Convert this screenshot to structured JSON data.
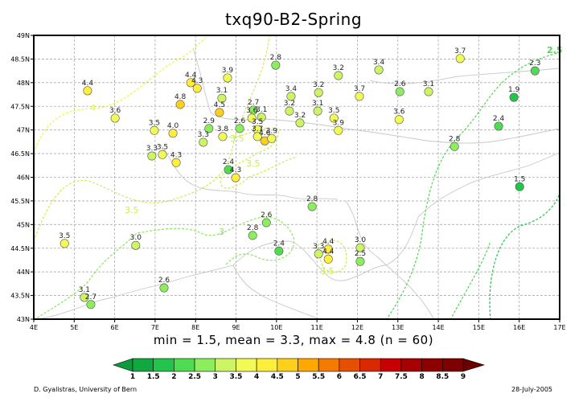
{
  "title": "txq90-B2-Spring",
  "stats": "min = 1.5, mean = 3.3, max = 4.8 (n = 60)",
  "footer": {
    "author": "D. Gyalistras, University of Bern",
    "date": "28-July-2005"
  },
  "axes": {
    "lon_range": [
      4,
      17
    ],
    "lat_range": [
      43,
      49
    ],
    "x_ticks": [
      "4E",
      "5E",
      "6E",
      "7E",
      "8E",
      "9E",
      "10E",
      "11E",
      "12E",
      "13E",
      "14E",
      "15E",
      "16E",
      "17E"
    ],
    "y_ticks": [
      "43N",
      "43.5N",
      "44N",
      "44.5N",
      "45N",
      "45.5N",
      "46N",
      "46.5N",
      "47N",
      "47.5N",
      "48N",
      "48.5N",
      "49N"
    ]
  },
  "colorbar": {
    "labels": [
      "1",
      "1.5",
      "2",
      "2.5",
      "3",
      "3.5",
      "4",
      "4.5",
      "5",
      "5.5",
      "6",
      "6.5",
      "7",
      "7.5",
      "8",
      "8.5",
      "9"
    ],
    "colors": [
      "#0b9a3c",
      "#10a83f",
      "#22c44b",
      "#4fdc52",
      "#8cee5c",
      "#cdf464",
      "#f2fa56",
      "#ffee3c",
      "#ffd01a",
      "#ffa800",
      "#f57a00",
      "#e64e00",
      "#da2800",
      "#c80000",
      "#a60000",
      "#8e0000",
      "#7e0000",
      "#6a0000"
    ]
  },
  "contour_labels": [
    "2.5",
    "3.5",
    "4",
    "3.5",
    "3",
    "3.5",
    "3.5"
  ],
  "stations": [
    {
      "lon": 5.33,
      "lat": 47.83,
      "value": "4.4"
    },
    {
      "lon": 6.01,
      "lat": 47.25,
      "value": "3.6"
    },
    {
      "lon": 7.88,
      "lat": 48.0,
      "value": "4.4"
    },
    {
      "lon": 8.04,
      "lat": 47.88,
      "value": "4.3"
    },
    {
      "lon": 8.79,
      "lat": 48.1,
      "value": "3.9"
    },
    {
      "lon": 7.62,
      "lat": 47.54,
      "value": "4.8"
    },
    {
      "lon": 8.65,
      "lat": 47.67,
      "value": "3.1"
    },
    {
      "lon": 8.59,
      "lat": 47.37,
      "value": "4.5"
    },
    {
      "lon": 6.98,
      "lat": 46.99,
      "value": "3.5"
    },
    {
      "lon": 7.44,
      "lat": 46.93,
      "value": "4.0"
    },
    {
      "lon": 8.33,
      "lat": 47.03,
      "value": "2.9"
    },
    {
      "lon": 8.67,
      "lat": 46.86,
      "value": "3.8"
    },
    {
      "lon": 8.19,
      "lat": 46.74,
      "value": "3.3"
    },
    {
      "lon": 9.09,
      "lat": 47.03,
      "value": "2.6"
    },
    {
      "lon": 6.92,
      "lat": 46.45,
      "value": "3.3"
    },
    {
      "lon": 7.18,
      "lat": 46.48,
      "value": "3.5"
    },
    {
      "lon": 7.52,
      "lat": 46.31,
      "value": "4.3"
    },
    {
      "lon": 8.81,
      "lat": 46.16,
      "value": "2.4"
    },
    {
      "lon": 8.99,
      "lat": 45.99,
      "value": "4.3"
    },
    {
      "lon": 9.98,
      "lat": 48.37,
      "value": "2.8"
    },
    {
      "lon": 11.53,
      "lat": 48.15,
      "value": "3.2"
    },
    {
      "lon": 12.53,
      "lat": 48.27,
      "value": "3.4"
    },
    {
      "lon": 14.54,
      "lat": 48.51,
      "value": "3.7"
    },
    {
      "lon": 16.39,
      "lat": 48.25,
      "value": "2.3"
    },
    {
      "lon": 10.36,
      "lat": 47.71,
      "value": "3.4"
    },
    {
      "lon": 11.04,
      "lat": 47.79,
      "value": "3.2"
    },
    {
      "lon": 12.05,
      "lat": 47.71,
      "value": "3.7"
    },
    {
      "lon": 13.05,
      "lat": 47.81,
      "value": "2.6"
    },
    {
      "lon": 13.76,
      "lat": 47.81,
      "value": "3.1"
    },
    {
      "lon": 15.87,
      "lat": 47.69,
      "value": "1.9"
    },
    {
      "lon": 9.43,
      "lat": 47.42,
      "value": "2.7"
    },
    {
      "lon": 9.39,
      "lat": 47.25,
      "value": "3.6"
    },
    {
      "lon": 9.63,
      "lat": 47.27,
      "value": "3.1"
    },
    {
      "lon": 10.32,
      "lat": 47.4,
      "value": "3.2"
    },
    {
      "lon": 11.02,
      "lat": 47.4,
      "value": "3.1"
    },
    {
      "lon": 11.42,
      "lat": 47.25,
      "value": "3.5"
    },
    {
      "lon": 10.58,
      "lat": 47.15,
      "value": "3.2"
    },
    {
      "lon": 13.03,
      "lat": 47.22,
      "value": "3.6"
    },
    {
      "lon": 15.49,
      "lat": 47.08,
      "value": "2.4"
    },
    {
      "lon": 9.53,
      "lat": 47.01,
      "value": "3.5"
    },
    {
      "lon": 9.53,
      "lat": 46.86,
      "value": "3.7"
    },
    {
      "lon": 9.71,
      "lat": 46.77,
      "value": "4.6"
    },
    {
      "lon": 9.88,
      "lat": 46.82,
      "value": "3.9"
    },
    {
      "lon": 11.53,
      "lat": 46.99,
      "value": "3.9"
    },
    {
      "lon": 14.4,
      "lat": 46.65,
      "value": "2.8"
    },
    {
      "lon": 16.01,
      "lat": 45.8,
      "value": "1.5"
    },
    {
      "lon": 10.88,
      "lat": 45.38,
      "value": "2.8"
    },
    {
      "lon": 9.75,
      "lat": 45.04,
      "value": "2.6"
    },
    {
      "lon": 9.41,
      "lat": 44.77,
      "value": "2.8"
    },
    {
      "lon": 10.06,
      "lat": 44.44,
      "value": "2.4"
    },
    {
      "lon": 4.76,
      "lat": 44.6,
      "value": "3.5"
    },
    {
      "lon": 6.52,
      "lat": 44.56,
      "value": "3.0"
    },
    {
      "lon": 11.04,
      "lat": 44.38,
      "value": "3.3"
    },
    {
      "lon": 11.28,
      "lat": 44.48,
      "value": "4.4"
    },
    {
      "lon": 11.28,
      "lat": 44.27,
      "value": "4.4"
    },
    {
      "lon": 12.07,
      "lat": 44.51,
      "value": "3.0"
    },
    {
      "lon": 12.07,
      "lat": 44.22,
      "value": "2.5"
    },
    {
      "lon": 7.22,
      "lat": 43.66,
      "value": "2.6"
    },
    {
      "lon": 5.25,
      "lat": 43.46,
      "value": "3.1"
    },
    {
      "lon": 5.41,
      "lat": 43.31,
      "value": "2.7"
    }
  ]
}
